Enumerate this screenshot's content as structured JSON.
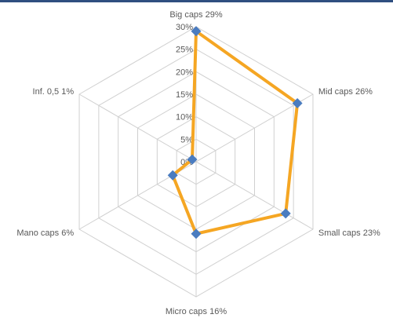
{
  "colors": {
    "top_bar": "#2f4f80",
    "series_line": "#f5a623",
    "marker": "#4a7cc0",
    "grid": "#d0d0d0",
    "text": "#595959"
  },
  "chart_data": {
    "type": "radar",
    "categories": [
      "Big caps 29%",
      "Mid caps 26%",
      "Small caps 23%",
      "Micro caps 16%",
      "Mano caps 6%",
      "Inf. 0,5 1%"
    ],
    "series": [
      {
        "values": [
          0.29,
          0.26,
          0.23,
          0.16,
          0.06,
          0.01
        ]
      }
    ],
    "axis_ticks": [
      "0%",
      "5%",
      "10%",
      "15%",
      "20%",
      "25%",
      "30%"
    ],
    "ylim": [
      0,
      0.3
    ],
    "grid": true,
    "legend": "none"
  }
}
